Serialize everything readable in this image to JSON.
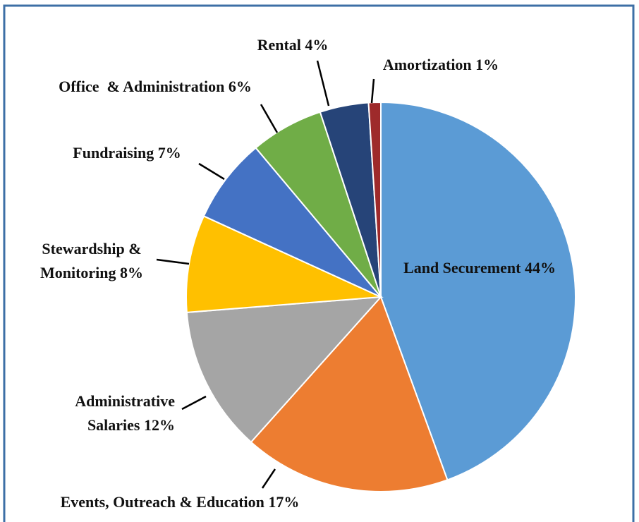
{
  "chart_data": {
    "type": "pie",
    "categories": [
      "Land Securement",
      "Events, Outreach & Education",
      "Administrative Salaries",
      "Stewardship & Monitoring",
      "Fundraising",
      "Office  & Administration",
      "Rental",
      "Amortization"
    ],
    "values": [
      44,
      17,
      12,
      8,
      7,
      6,
      4,
      1
    ],
    "value_labels": [
      "44%",
      "17%",
      "12%",
      "8%",
      "7%",
      "6%",
      "4%",
      "1%"
    ],
    "colors": [
      "#5b9bd5",
      "#ed7d31",
      "#a5a5a5",
      "#ffc000",
      "#4472c4",
      "#70ad47",
      "#264478",
      "#9e2a2b"
    ]
  }
}
